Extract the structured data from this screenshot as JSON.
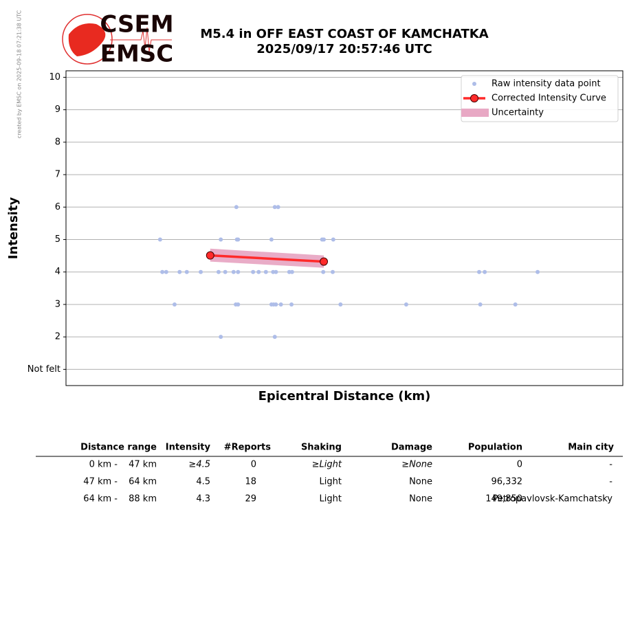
{
  "chart_data": {
    "type": "scatter",
    "title": "M5.4 in OFF EAST COAST OF KAMCHATKA",
    "subtitle": "2025/09/17 20:57:46 UTC",
    "side_note": "created by EMSC on 2025-09-18 07:21:38 UTC",
    "logo": {
      "top": "CSEM",
      "bottom": "EMSC"
    },
    "xlabel": "Epicentral Distance (km)",
    "ylabel": "Intensity",
    "xlim": [
      0,
      100
    ],
    "ylim": [
      0.5,
      10.2
    ],
    "yticks": [
      {
        "value": 1,
        "label": "Not felt"
      },
      2,
      3,
      4,
      5,
      6,
      7,
      8,
      9,
      10
    ],
    "grid": true,
    "legend": "upper right",
    "series": [
      {
        "name": "Raw intensity data point",
        "color": "#aebde8",
        "x": [
          16.9,
          27.8,
          30.7,
          30.9,
          36.9,
          46.0,
          46.3,
          48.0,
          30.6,
          37.5,
          38.1,
          17.3,
          18.0,
          20.4,
          21.7,
          24.2,
          27.4,
          28.6,
          30.1,
          30.9,
          33.6,
          34.6,
          35.9,
          37.2,
          37.7,
          40.1,
          40.6,
          46.2,
          47.9,
          74.2,
          75.2,
          84.7,
          19.5,
          30.5,
          30.9,
          36.9,
          37.3,
          37.7,
          38.6,
          40.5,
          49.3,
          61.1,
          74.4,
          80.7,
          27.8,
          37.5
        ],
        "values": [
          5,
          5,
          5,
          5,
          5,
          5,
          5,
          5,
          6,
          6,
          6,
          4,
          4,
          4,
          4,
          4,
          4,
          4,
          4,
          4,
          4,
          4,
          4,
          4,
          4,
          4,
          4,
          4,
          4,
          4,
          4,
          4,
          3,
          3,
          3,
          3,
          3,
          3,
          3,
          3,
          3,
          3,
          3,
          3,
          2,
          2
        ]
      },
      {
        "name": "Corrected Intensity Curve",
        "color": "#ff2a2a",
        "x": [
          25.9,
          46.3
        ],
        "values": [
          4.51,
          4.32
        ]
      },
      {
        "name": "Uncertainty",
        "color": "#e8a8c4",
        "x": [
          25.9,
          46.3
        ],
        "upper": [
          4.72,
          4.51
        ],
        "lower": [
          4.32,
          4.13
        ]
      }
    ]
  },
  "table": {
    "columns": [
      "Distance range",
      "Intensity",
      "#Reports",
      "Shaking",
      "Damage",
      "Population",
      "Main city"
    ],
    "rows": [
      [
        "0 km -",
        "47 km",
        "≥4.5",
        "0",
        "≥Light",
        "≥None",
        "0",
        "-"
      ],
      [
        "47 km -",
        "64 km",
        "4.5",
        "18",
        "Light",
        "None",
        "96,332",
        "-"
      ],
      [
        "64 km -",
        "88 km",
        "4.3",
        "29",
        "Light",
        "None",
        "149,850",
        "Petropavlovsk-Kamchatsky"
      ]
    ]
  }
}
